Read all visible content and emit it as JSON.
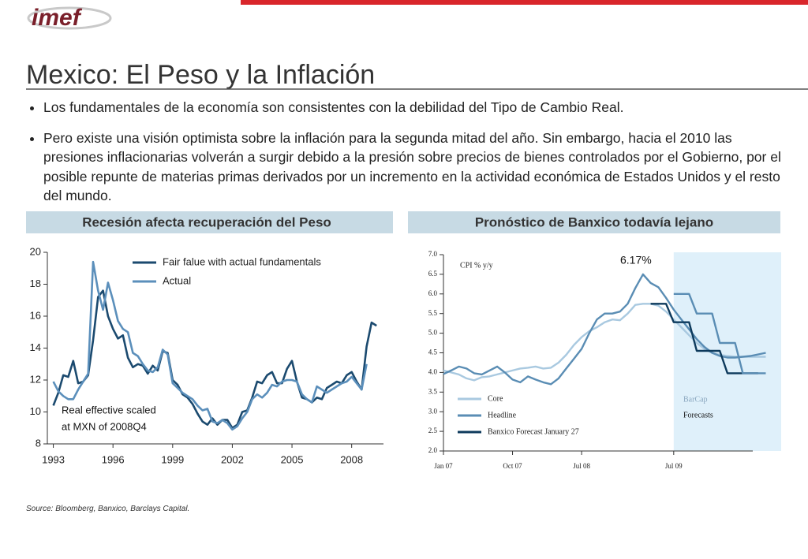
{
  "logo": "imef",
  "title": "Mexico: El Peso y la Inflación",
  "bullets": [
    "Los fundamentales de la economía son consistentes con la debilidad del Tipo de Cambio Real.",
    "Pero existe una visión optimista sobre la inflación para la segunda mitad del año. Sin embargo, hacia el 2010 las presiones inflacionarias volverán a surgir debido a la presión sobre precios de bienes controlados por el Gobierno, por el posible repunte de materias primas derivados por un incremento en la actividad económica de Estados Unidos y el resto del mundo."
  ],
  "source": "Source: Bloomberg, Banxico, Barclays Capital.",
  "chart_data": [
    {
      "type": "line",
      "title": "Recesión afecta  recuperación del Peso",
      "annotations": [
        "Real effective scaled",
        "at MXN of 2008Q4"
      ],
      "x": [
        1993,
        1993.25,
        1993.5,
        1993.75,
        1994,
        1994.25,
        1994.5,
        1994.75,
        1995,
        1995.25,
        1995.5,
        1995.75,
        1996,
        1996.25,
        1996.5,
        1996.75,
        1997,
        1997.25,
        1997.5,
        1997.75,
        1998,
        1998.25,
        1998.5,
        1998.75,
        1999,
        1999.25,
        1999.5,
        1999.75,
        2000,
        2000.25,
        2000.5,
        2000.75,
        2001,
        2001.25,
        2001.5,
        2001.75,
        2002,
        2002.25,
        2002.5,
        2002.75,
        2003,
        2003.25,
        2003.5,
        2003.75,
        2004,
        2004.25,
        2004.5,
        2004.75,
        2005,
        2005.25,
        2005.5,
        2005.75,
        2006,
        2006.25,
        2006.5,
        2006.75,
        2007,
        2007.25,
        2007.5,
        2007.75,
        2008,
        2008.25,
        2008.5,
        2008.75,
        2009,
        2009.25
      ],
      "series": [
        {
          "name": "Fair falue with actual fundamentals",
          "color": "#1b4a6f",
          "values": [
            10.4,
            11.2,
            12.3,
            12.2,
            13.2,
            11.8,
            11.9,
            12.3,
            14.5,
            17.2,
            17.6,
            16.0,
            15.2,
            14.6,
            14.8,
            13.4,
            12.8,
            13.0,
            12.9,
            12.4,
            12.9,
            12.6,
            13.8,
            13.7,
            12.0,
            11.7,
            11.1,
            10.9,
            10.5,
            9.9,
            9.4,
            9.2,
            9.6,
            9.2,
            9.5,
            9.5,
            9.0,
            9.2,
            10.0,
            10.1,
            10.9,
            11.9,
            11.8,
            12.3,
            12.5,
            11.8,
            11.8,
            12.7,
            13.2,
            11.9,
            10.9,
            10.8,
            10.6,
            10.9,
            10.8,
            11.5,
            11.7,
            11.9,
            11.8,
            12.3,
            12.5,
            11.9,
            11.4,
            14.1,
            15.6,
            15.4
          ]
        },
        {
          "name": "Actual",
          "color": "#5b8fbb",
          "values": [
            11.9,
            11.3,
            11.0,
            10.8,
            10.8,
            11.4,
            11.9,
            12.4,
            19.4,
            17.6,
            16.4,
            18.1,
            17.0,
            15.7,
            15.2,
            15.0,
            13.7,
            13.5,
            13.0,
            12.6,
            12.5,
            12.8,
            13.9,
            13.6,
            11.8,
            11.5,
            11.2,
            11.0,
            10.8,
            10.4,
            10.1,
            10.2,
            9.4,
            9.3,
            9.5,
            9.3,
            8.9,
            9.1,
            9.6,
            10.0,
            10.8,
            11.1,
            10.9,
            11.2,
            11.7,
            11.6,
            11.9,
            12.0,
            12.0,
            11.9,
            11.1,
            10.8,
            10.6,
            11.6,
            11.4,
            11.2,
            11.4,
            11.6,
            11.8,
            11.9,
            12.2,
            11.8,
            11.4,
            13.0,
            null,
            null
          ]
        }
      ],
      "xlim": [
        1992.7,
        2009.6
      ],
      "xticks": [
        1993,
        1996,
        1999,
        2002,
        2005,
        2008
      ],
      "ylim": [
        8,
        20
      ],
      "yticks": [
        8,
        10,
        12,
        14,
        16,
        18,
        20
      ]
    },
    {
      "type": "line",
      "title": "Pronóstico de Banxico todavía lejano",
      "annotations": [
        "CPI % y/y",
        "6.17%",
        "BarCap",
        "Forecasts"
      ],
      "shade_from": 30,
      "x": [
        0,
        1,
        2,
        3,
        4,
        5,
        6,
        7,
        8,
        9,
        10,
        11,
        12,
        13,
        14,
        15,
        16,
        17,
        18,
        19,
        20,
        21,
        22,
        23,
        24,
        25,
        26,
        27,
        28,
        29,
        30,
        31,
        32,
        33,
        34,
        35,
        36,
        37,
        38,
        39,
        40,
        41,
        42
      ],
      "series": [
        {
          "name": "Core",
          "color": "#a9c9e0",
          "values": [
            4.05,
            4.0,
            3.95,
            3.85,
            3.8,
            3.88,
            3.9,
            3.95,
            4.0,
            4.05,
            4.1,
            4.12,
            4.15,
            4.1,
            4.12,
            4.25,
            4.45,
            4.7,
            4.9,
            5.05,
            5.15,
            5.28,
            5.35,
            5.33,
            5.5,
            5.72,
            5.75,
            5.75,
            5.7,
            5.55,
            5.35,
            5.15,
            4.95,
            4.75,
            4.6,
            4.5,
            4.45,
            4.42,
            4.4,
            4.4,
            4.4,
            4.4,
            4.4
          ]
        },
        {
          "name": "Headline",
          "color": "#5a8db4",
          "values": [
            3.96,
            4.05,
            4.15,
            4.1,
            3.98,
            3.95,
            4.05,
            4.15,
            4.0,
            3.82,
            3.75,
            3.9,
            3.82,
            3.75,
            3.7,
            3.85,
            4.1,
            4.35,
            4.6,
            5.0,
            5.35,
            5.5,
            5.5,
            5.55,
            5.75,
            6.15,
            6.5,
            6.28,
            6.17,
            5.9,
            5.6,
            5.35,
            5.1,
            4.85,
            4.65,
            4.5,
            4.42,
            4.38,
            4.38,
            4.4,
            4.42,
            4.46,
            4.5
          ]
        },
        {
          "name": "Banxico Forecast January 27",
          "color": "#0d3a5c",
          "values": [
            null,
            null,
            null,
            null,
            null,
            null,
            null,
            null,
            null,
            null,
            null,
            null,
            null,
            null,
            null,
            null,
            null,
            null,
            null,
            null,
            null,
            null,
            null,
            null,
            null,
            null,
            null,
            5.75,
            5.75,
            5.75,
            5.28,
            5.28,
            5.28,
            4.55,
            4.55,
            4.55,
            4.55,
            3.98,
            3.98,
            3.98,
            3.98,
            3.98,
            null
          ]
        },
        {
          "color": "#5a8db4",
          "values": [
            null,
            null,
            null,
            null,
            null,
            null,
            null,
            null,
            null,
            null,
            null,
            null,
            null,
            null,
            null,
            null,
            null,
            null,
            null,
            null,
            null,
            null,
            null,
            null,
            null,
            null,
            null,
            null,
            null,
            null,
            6.0,
            6.0,
            6.0,
            5.5,
            5.5,
            5.5,
            4.75,
            4.75,
            4.75,
            3.98,
            3.98,
            3.98,
            3.98
          ]
        }
      ],
      "xlim": [
        0,
        44
      ],
      "xticks": [
        {
          "value": 0,
          "label": "Jan 07"
        },
        {
          "value": 9,
          "label": "Oct 07"
        },
        {
          "value": 18,
          "label": "Jul 08"
        },
        {
          "value": 30,
          "label": "Jul  09"
        }
      ],
      "ylim": [
        2,
        7
      ],
      "yticks": [
        {
          "value": 2,
          "label": "2.0"
        },
        {
          "value": 2.5,
          "label": "2.5"
        },
        {
          "value": 3,
          "label": "3.0"
        },
        {
          "value": 3.5,
          "label": "3.5"
        },
        {
          "value": 4,
          "label": "4.0"
        },
        {
          "value": 4.5,
          "label": "4.5"
        },
        {
          "value": 5,
          "label": "5.0"
        },
        {
          "value": 5.5,
          "label": "5.5"
        },
        {
          "value": 6,
          "label": "6.0"
        },
        {
          "value": 6.5,
          "label": "6.5"
        },
        {
          "value": 7,
          "label": "7.0"
        }
      ]
    }
  ]
}
